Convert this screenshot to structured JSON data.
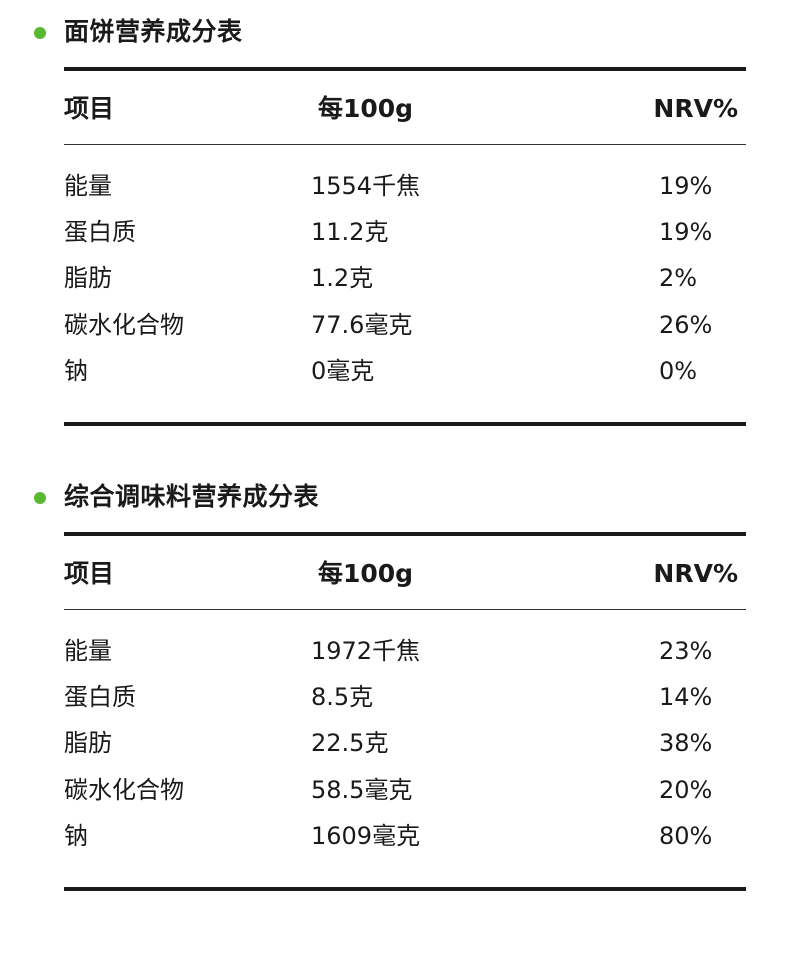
{
  "accent_color": "#5ab82e",
  "tables": [
    {
      "title": "面饼营养成分表",
      "headers": {
        "item": "项目",
        "per": "每100g",
        "nrv": "NRV%"
      },
      "rows": [
        {
          "name": "能量",
          "value": "1554千焦",
          "nrv": "19%"
        },
        {
          "name": "蛋白质",
          "value": "11.2克",
          "nrv": "19%"
        },
        {
          "name": "脂肪",
          "value": "1.2克",
          "nrv": "2%"
        },
        {
          "name": "碳水化合物",
          "value": "77.6毫克",
          "nrv": "26%"
        },
        {
          "name": "钠",
          "value": "0毫克",
          "nrv": "0%"
        }
      ]
    },
    {
      "title": "综合调味料营养成分表",
      "headers": {
        "item": "项目",
        "per": "每100g",
        "nrv": "NRV%"
      },
      "rows": [
        {
          "name": "能量",
          "value": "1972千焦",
          "nrv": "23%"
        },
        {
          "name": "蛋白质",
          "value": "8.5克",
          "nrv": "14%"
        },
        {
          "name": "脂肪",
          "value": "22.5克",
          "nrv": "38%"
        },
        {
          "name": "碳水化合物",
          "value": "58.5毫克",
          "nrv": "20%"
        },
        {
          "name": "钠",
          "value": "1609毫克",
          "nrv": "80%"
        }
      ]
    }
  ]
}
